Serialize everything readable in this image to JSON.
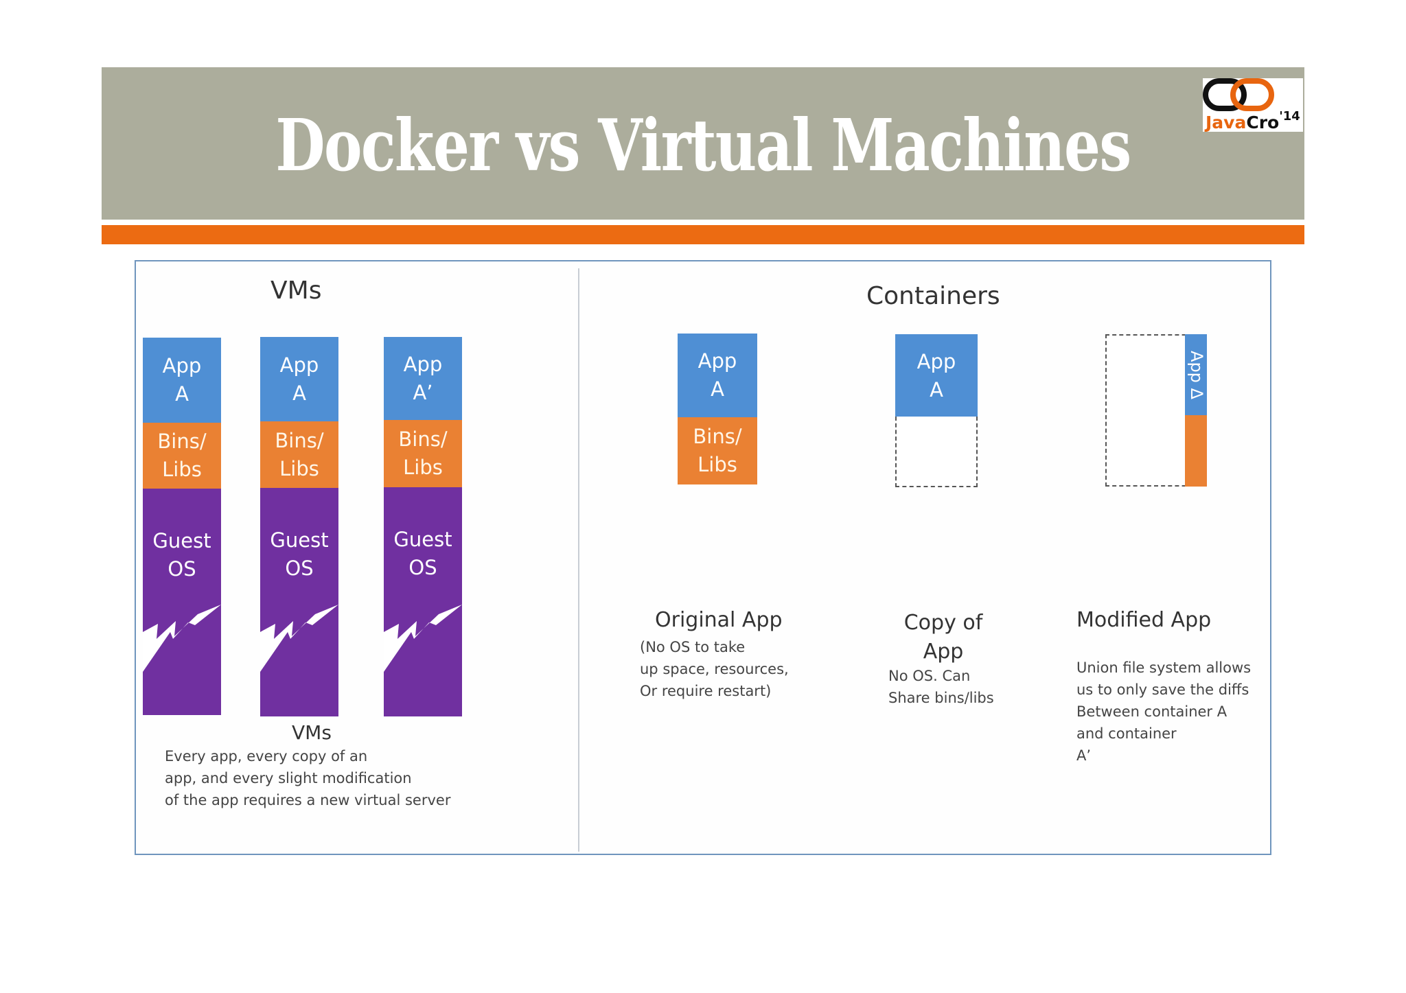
{
  "slide": {
    "title": "Docker vs Virtual Machines",
    "logo": {
      "brand_part1": "Java",
      "brand_part2": "Cro",
      "year": "'14"
    }
  },
  "colors": {
    "title_bar": "#acad9c",
    "accent_bar": "#ec6b12",
    "app_block": "#4f8fd4",
    "bins_block": "#ea8133",
    "guest_os_block": "#7030a0",
    "frame_border": "#6f95bd"
  },
  "vms": {
    "heading": "VMs",
    "stacks": [
      {
        "app": "App\nA",
        "bins": "Bins/\nLibs",
        "os": "Guest\nOS"
      },
      {
        "app": "App\nA",
        "bins": "Bins/\nLibs",
        "os": "Guest\nOS"
      },
      {
        "app": "App\nA’",
        "bins": "Bins/\nLibs",
        "os": "Guest\nOS"
      }
    ],
    "footer_label": "VMs",
    "footer_note": "Every app, every copy of an\napp, and every slight modification\nof the app requires a new virtual server"
  },
  "containers": {
    "heading": "Containers",
    "original": {
      "app": "App\nA",
      "bins": "Bins/\nLibs",
      "caption": "Original App",
      "note": "(No OS to take\nup space, resources,\nOr require restart)"
    },
    "copy": {
      "app": "App\nA",
      "caption": "Copy of\nApp",
      "note": "No OS. Can\nShare bins/libs"
    },
    "modified": {
      "app": "App Δ",
      "caption": "Modified App",
      "note": "Union file system allows\nus to only save the diffs\nBetween container A\nand container\nA’"
    }
  }
}
